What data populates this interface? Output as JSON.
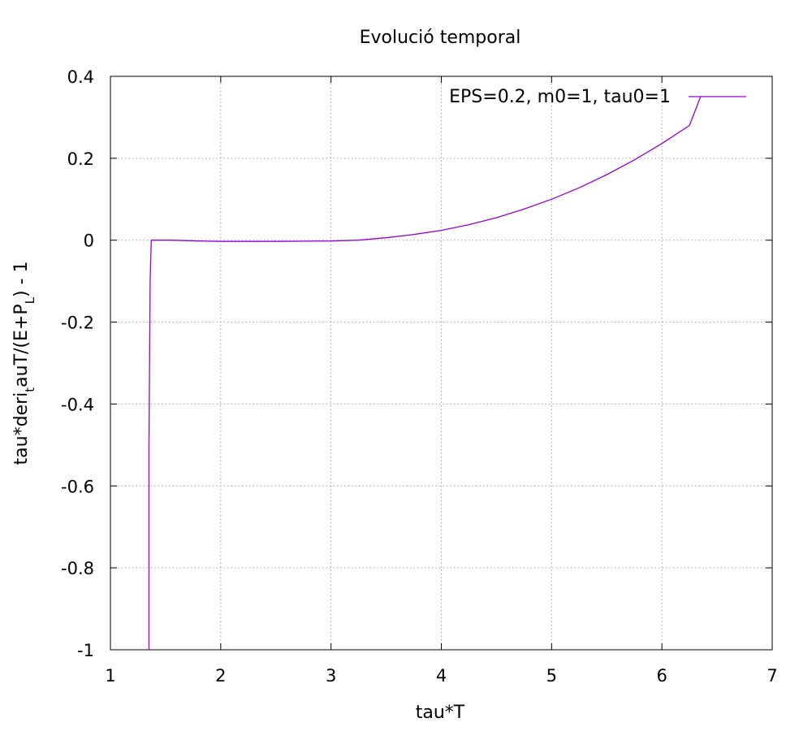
{
  "chart_data": {
    "type": "line",
    "title": "Evolució temporal",
    "xlabel": "tau*T",
    "ylabel": "tau*deri_tauT/(E+P_L)  -  1",
    "ylabel_parts": {
      "main": "tau*deri",
      "sub1": "t",
      "mid": "auT/(E+P",
      "sub2": "L",
      "tail": ")  -  1"
    },
    "xlim": [
      1,
      7
    ],
    "ylim": [
      -1,
      0.4
    ],
    "xticks": [
      1,
      2,
      3,
      4,
      5,
      6,
      7
    ],
    "yticks": [
      -1,
      -0.8,
      -0.6,
      -0.4,
      -0.2,
      0,
      0.2,
      0.4
    ],
    "xtick_labels": [
      "1",
      "2",
      "3",
      "4",
      "5",
      "6",
      "7"
    ],
    "ytick_labels": [
      "-1",
      "-0.8",
      "-0.6",
      "-0.4",
      "-0.2",
      "0",
      "0.2",
      "0.4"
    ],
    "grid": true,
    "legend_position": "top-right",
    "series": [
      {
        "name": "EPS=0.2, m0=1, tau0=1",
        "color": "#9400d3",
        "x": [
          1.35,
          1.35,
          1.36,
          1.37,
          1.55,
          1.8,
          2.0,
          2.5,
          3.0,
          3.25,
          3.5,
          3.75,
          4.0,
          4.25,
          4.5,
          4.75,
          5.0,
          5.25,
          5.5,
          5.75,
          6.0,
          6.25,
          6.35
        ],
        "y": [
          -1.0,
          -0.5,
          -0.1,
          0.0,
          0.0,
          -0.002,
          -0.003,
          -0.003,
          -0.002,
          0.0,
          0.006,
          0.014,
          0.024,
          0.038,
          0.055,
          0.076,
          0.1,
          0.128,
          0.16,
          0.196,
          0.236,
          0.28,
          0.35
        ]
      }
    ]
  }
}
